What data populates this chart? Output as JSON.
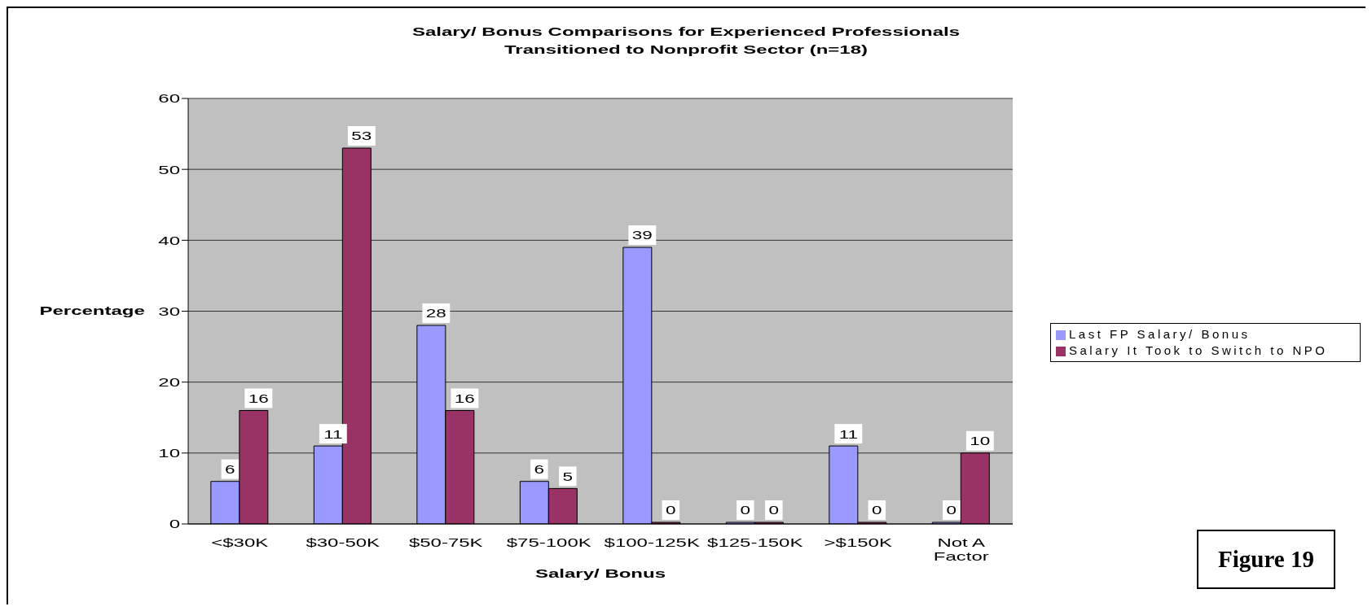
{
  "chart_data": {
    "type": "bar",
    "title": "Salary/ Bonus Comparisons for Experienced Professionals Transitioned to Nonprofit Sector (n=18)",
    "xlabel": "Salary/ Bonus",
    "ylabel": "Percentage",
    "categories": [
      "<$30K",
      "$30-50K",
      "$50-75K",
      "$75-100K",
      "$100-125K",
      "$125-150K",
      ">$150K",
      "Not A Factor"
    ],
    "series": [
      {
        "name": "Last FP Salary/ Bonus",
        "color": "#9999ff",
        "values": [
          6,
          11,
          28,
          6,
          39,
          0,
          11,
          0
        ]
      },
      {
        "name": "Salary It Took to Switch to NPO",
        "color": "#993366",
        "values": [
          16,
          53,
          16,
          5,
          0,
          0,
          0,
          10
        ]
      }
    ],
    "ylim": [
      0,
      60
    ],
    "yticks": [
      0,
      10,
      20,
      30,
      40,
      50,
      60
    ],
    "grid": "y",
    "legend": "right",
    "data_labels": true,
    "annotations": [
      "Figure 19"
    ]
  }
}
